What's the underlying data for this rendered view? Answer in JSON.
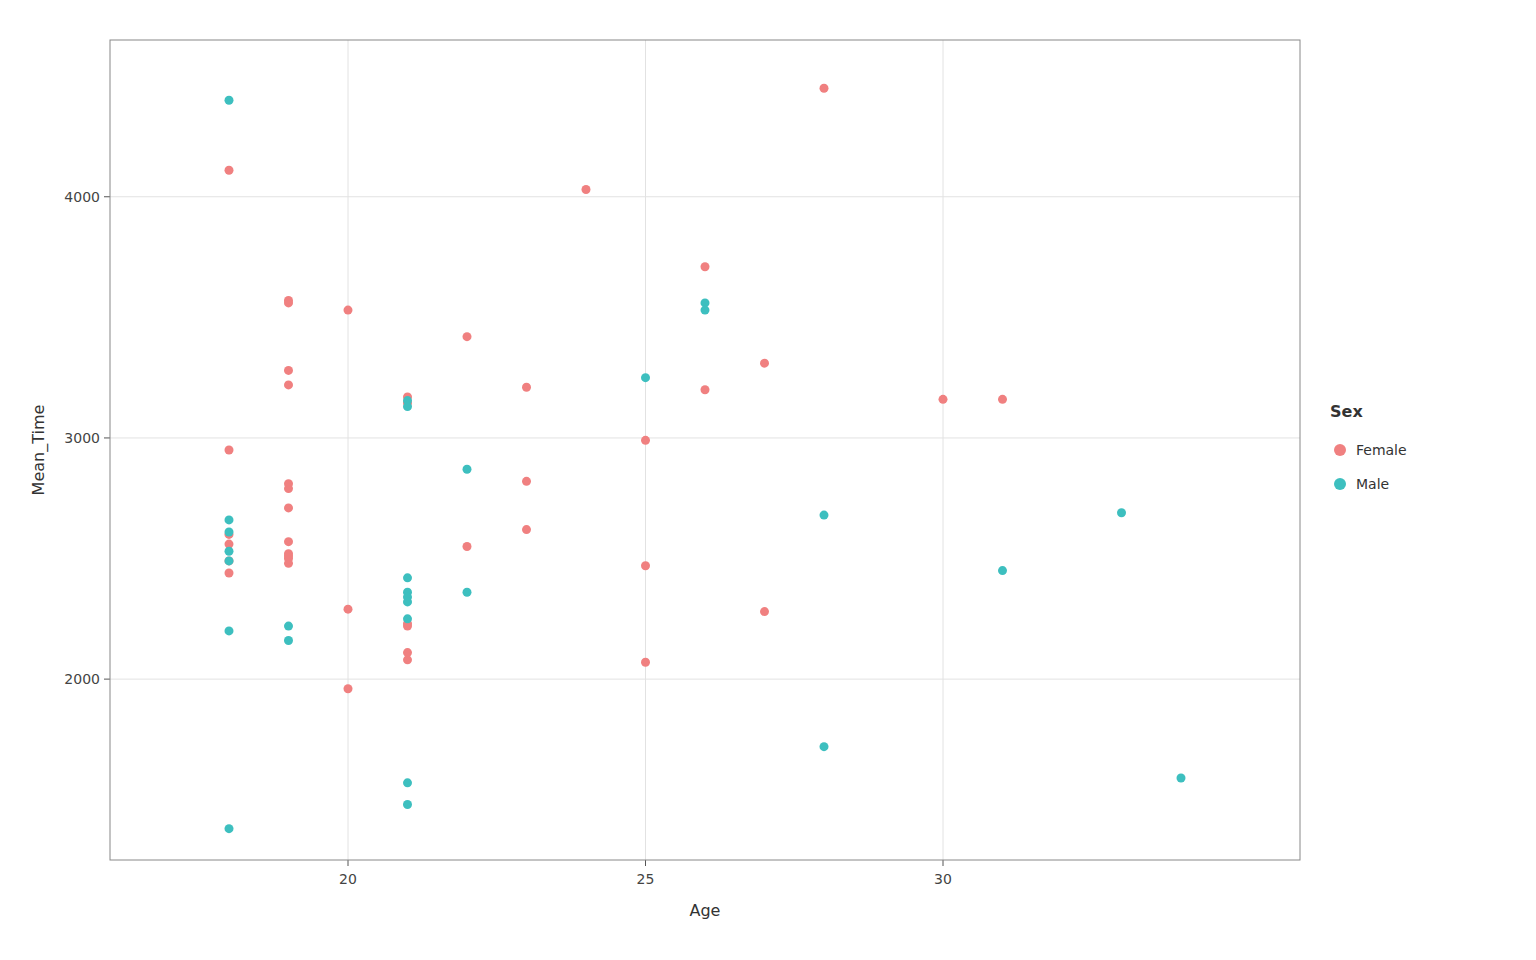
{
  "chart_data": {
    "type": "scatter",
    "x_label": "Age",
    "y_label": "Mean_Time",
    "legend_title": "Sex",
    "legend": "right",
    "grid": true,
    "xlim": [
      16.0,
      36.0
    ],
    "ylim": [
      1250,
      4650
    ],
    "xticks": [
      20,
      25,
      30
    ],
    "yticks": [
      2000,
      3000,
      4000
    ],
    "series": [
      {
        "name": "Female",
        "color": "#F08080",
        "marker": "circle",
        "x": [
          18,
          18,
          18,
          18,
          18,
          18,
          19,
          19,
          19,
          19,
          19,
          19,
          19,
          19,
          19,
          19,
          19,
          19,
          20,
          20,
          20,
          21,
          21,
          21,
          21,
          21,
          21,
          22,
          22,
          23,
          23,
          23,
          24,
          25,
          25,
          25,
          26,
          26,
          27,
          27,
          28,
          30,
          31
        ],
        "values": [
          4110,
          2950,
          2600,
          2560,
          2490,
          2440,
          3570,
          3560,
          3280,
          3220,
          2810,
          2790,
          2710,
          2570,
          2520,
          2510,
          2500,
          2480,
          3530,
          2290,
          1960,
          3170,
          3145,
          2230,
          2220,
          2110,
          2080,
          3420,
          2550,
          3210,
          2820,
          2620,
          4030,
          2990,
          2470,
          2070,
          3710,
          3200,
          3310,
          2280,
          4450,
          3160,
          3160
        ]
      },
      {
        "name": "Male",
        "color": "#3DBFBF",
        "marker": "circle",
        "x": [
          18,
          18,
          18,
          18,
          18,
          18,
          19,
          19,
          18,
          21,
          21,
          21,
          21,
          21,
          21,
          21,
          21,
          21,
          22,
          22,
          25,
          26,
          26,
          28,
          28,
          31,
          33,
          34
        ],
        "values": [
          4400,
          2660,
          2610,
          2530,
          2490,
          2200,
          2220,
          2160,
          1380,
          3155,
          3130,
          2420,
          2360,
          2340,
          2320,
          2250,
          1570,
          1480,
          2870,
          2360,
          3250,
          3560,
          3530,
          2680,
          1720,
          2450,
          2690,
          1590
        ]
      }
    ]
  }
}
